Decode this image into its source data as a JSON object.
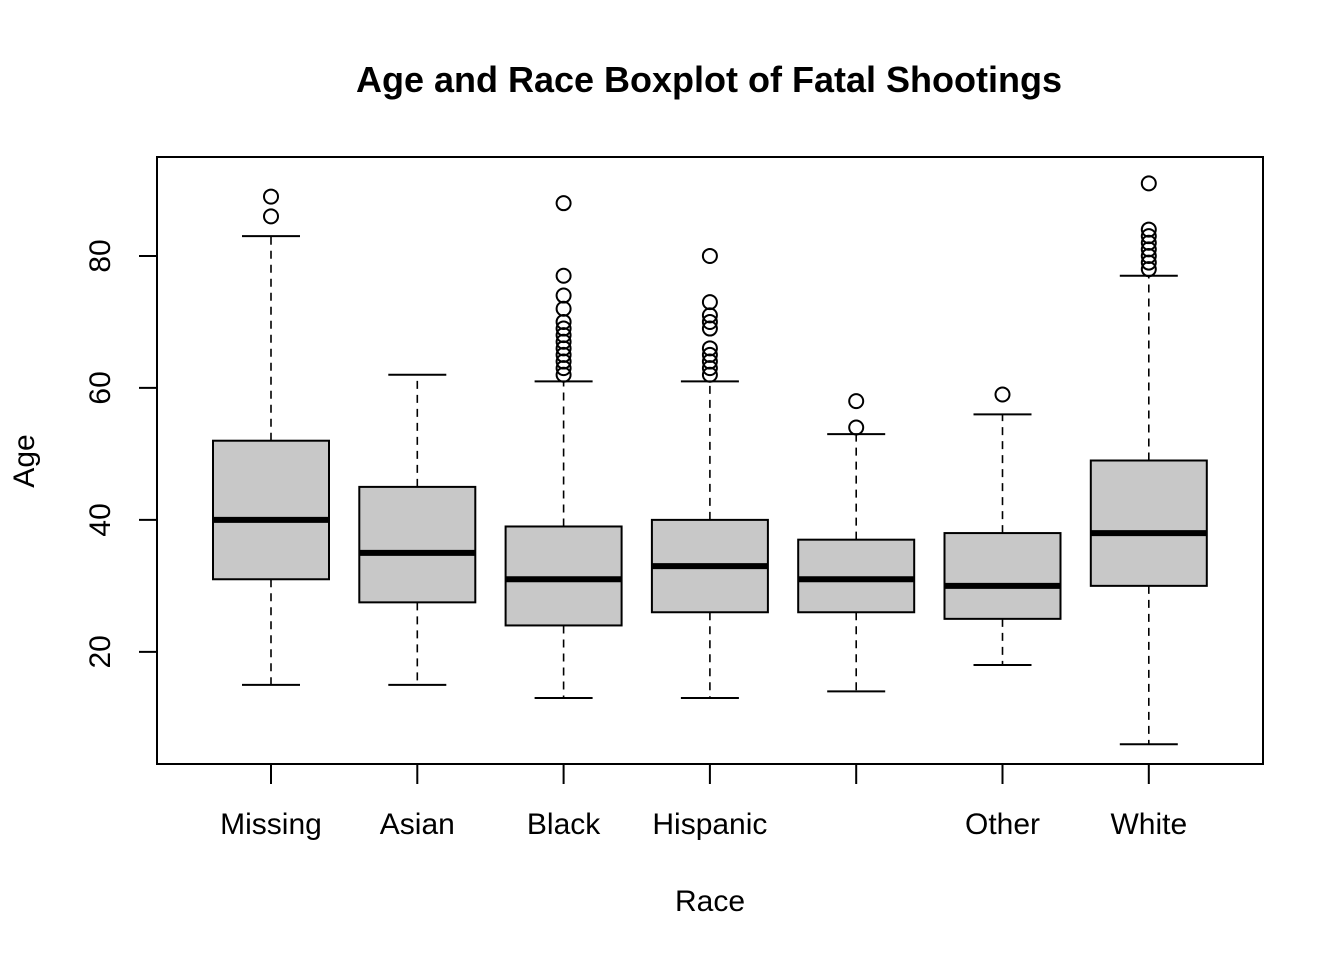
{
  "chart_data": {
    "type": "boxplot",
    "title": "Age and Race Boxplot of Fatal Shootings",
    "xlabel": "Race",
    "ylabel": "Age",
    "ylim": [
      3,
      95
    ],
    "yticks": [
      20,
      40,
      60,
      80
    ],
    "grid": false,
    "box_fill": "#c8c8c8",
    "categories": [
      "Missing",
      "Asian",
      "Black",
      "Hispanic",
      "",
      "Other",
      "White"
    ],
    "boxes": [
      {
        "category": "Missing",
        "whisker_low": 15,
        "q1": 31,
        "median": 40,
        "q3": 52,
        "whisker_high": 83,
        "outliers": [
          86,
          89
        ]
      },
      {
        "category": "Asian",
        "whisker_low": 15,
        "q1": 27.5,
        "median": 35,
        "q3": 45,
        "whisker_high": 62,
        "outliers": []
      },
      {
        "category": "Black",
        "whisker_low": 13,
        "q1": 24,
        "median": 31,
        "q3": 39,
        "whisker_high": 61,
        "outliers": [
          62,
          63,
          64,
          65,
          66,
          67,
          68,
          69,
          70,
          72,
          74,
          77,
          88
        ]
      },
      {
        "category": "Hispanic",
        "whisker_low": 13,
        "q1": 26,
        "median": 33,
        "q3": 40,
        "whisker_high": 61,
        "outliers": [
          62,
          63,
          64,
          65,
          66,
          69,
          70,
          71,
          73,
          80
        ]
      },
      {
        "category": "",
        "whisker_low": 14,
        "q1": 26,
        "median": 31,
        "q3": 37,
        "whisker_high": 53,
        "outliers": [
          54,
          58
        ]
      },
      {
        "category": "Other",
        "whisker_low": 18,
        "q1": 25,
        "median": 30,
        "q3": 38,
        "whisker_high": 56,
        "outliers": [
          59
        ]
      },
      {
        "category": "White",
        "whisker_low": 6,
        "q1": 30,
        "median": 38,
        "q3": 49,
        "whisker_high": 77,
        "outliers": [
          78,
          79,
          80,
          81,
          82,
          83,
          84,
          91
        ]
      }
    ]
  }
}
